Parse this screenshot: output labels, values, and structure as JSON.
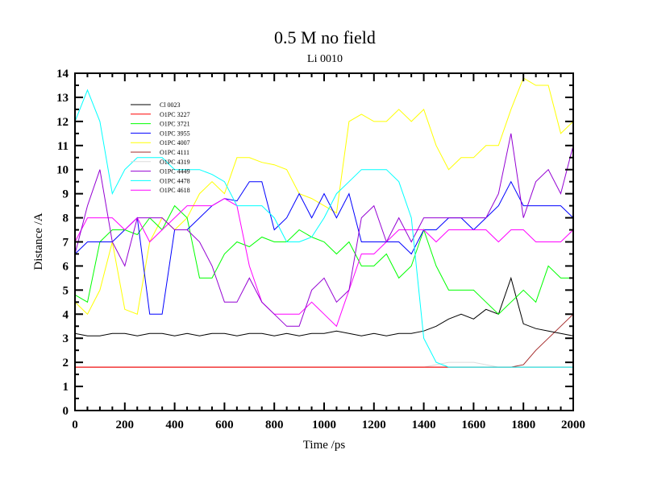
{
  "chart_data": {
    "type": "line",
    "title": "0.5 M no field",
    "subtitle": "Li 0010",
    "xlabel": "Time /ps",
    "ylabel": "Distance /A",
    "xlim": [
      0,
      2000
    ],
    "ylim": [
      0,
      14
    ],
    "xticks": [
      0,
      200,
      400,
      600,
      800,
      1000,
      1200,
      1400,
      1600,
      1800,
      2000
    ],
    "yticks": [
      0,
      1,
      2,
      3,
      4,
      5,
      6,
      7,
      8,
      9,
      10,
      11,
      12,
      13,
      14
    ],
    "grid": false,
    "legend_position": "top-left",
    "x": [
      0,
      50,
      100,
      150,
      200,
      250,
      300,
      350,
      400,
      450,
      500,
      550,
      600,
      650,
      700,
      750,
      800,
      850,
      900,
      950,
      1000,
      1050,
      1100,
      1150,
      1200,
      1250,
      1300,
      1350,
      1400,
      1450,
      1500,
      1550,
      1600,
      1650,
      1700,
      1750,
      1800,
      1850,
      1900,
      1950,
      2000
    ],
    "series": [
      {
        "name": "Cl 0023",
        "color": "#000000",
        "values": [
          3.2,
          3.1,
          3.1,
          3.2,
          3.2,
          3.1,
          3.2,
          3.2,
          3.1,
          3.2,
          3.1,
          3.2,
          3.2,
          3.1,
          3.2,
          3.2,
          3.1,
          3.2,
          3.1,
          3.2,
          3.2,
          3.3,
          3.2,
          3.1,
          3.2,
          3.1,
          3.2,
          3.2,
          3.3,
          3.5,
          3.8,
          4.0,
          3.8,
          4.2,
          4.0,
          5.5,
          3.6,
          3.4,
          3.3,
          3.2,
          3.1
        ]
      },
      {
        "name": "O1PC 3227",
        "color": "#ff0000",
        "values": [
          1.8,
          1.8,
          1.8,
          1.8,
          1.8,
          1.8,
          1.8,
          1.8,
          1.8,
          1.8,
          1.8,
          1.8,
          1.8,
          1.8,
          1.8,
          1.8,
          1.8,
          1.8,
          1.8,
          1.8,
          1.8,
          1.8,
          1.8,
          1.8,
          1.8,
          1.8,
          1.8,
          1.8,
          1.8,
          1.8,
          1.8,
          1.8,
          1.8,
          1.8,
          1.8,
          1.8,
          1.8,
          1.8,
          1.8,
          1.8,
          1.8
        ]
      },
      {
        "name": "O1PC 3721",
        "color": "#00ff00",
        "values": [
          4.8,
          4.5,
          7.0,
          7.5,
          7.5,
          7.3,
          8.0,
          7.5,
          8.5,
          8.0,
          5.5,
          5.5,
          6.5,
          7.0,
          6.8,
          7.2,
          7.0,
          7.0,
          7.5,
          7.2,
          7.0,
          6.5,
          7.0,
          6.0,
          6.0,
          6.5,
          5.5,
          6.0,
          7.5,
          6.0,
          5.0,
          5.0,
          5.0,
          4.5,
          4.0,
          4.5,
          5.0,
          4.5,
          6.0,
          5.5,
          5.5
        ]
      },
      {
        "name": "O1PC 3955",
        "color": "#0000ff",
        "values": [
          6.5,
          7.0,
          7.0,
          7.0,
          7.5,
          8.0,
          4.0,
          4.0,
          7.5,
          7.5,
          8.0,
          8.5,
          8.8,
          8.7,
          9.5,
          9.5,
          7.5,
          8.0,
          9.0,
          8.0,
          9.0,
          8.0,
          9.0,
          7.0,
          7.0,
          7.0,
          7.0,
          6.5,
          7.5,
          7.5,
          8.0,
          8.0,
          7.5,
          8.0,
          8.5,
          9.5,
          8.5,
          8.5,
          8.5,
          8.5,
          8.0
        ]
      },
      {
        "name": "O1PC 4007",
        "color": "#ffff00",
        "values": [
          4.5,
          4.0,
          5.0,
          7.0,
          4.2,
          4.0,
          7.0,
          8.0,
          7.5,
          8.0,
          9.0,
          9.5,
          9.0,
          10.5,
          10.5,
          10.3,
          10.2,
          10.0,
          9.0,
          8.8,
          8.5,
          8.2,
          12.0,
          12.3,
          12.0,
          12.0,
          12.5,
          12.0,
          12.5,
          11.0,
          10.0,
          10.5,
          10.5,
          11.0,
          11.0,
          12.5,
          13.8,
          13.5,
          13.5,
          11.5,
          12.0
        ]
      },
      {
        "name": "O1PC 4111",
        "color": "#a52a2a",
        "values": [
          1.8,
          1.8,
          1.8,
          1.8,
          1.8,
          1.8,
          1.8,
          1.8,
          1.8,
          1.8,
          1.8,
          1.8,
          1.8,
          1.8,
          1.8,
          1.8,
          1.8,
          1.8,
          1.8,
          1.8,
          1.8,
          1.8,
          1.8,
          1.8,
          1.8,
          1.8,
          1.8,
          1.8,
          1.8,
          1.8,
          1.8,
          1.8,
          1.8,
          1.8,
          1.8,
          1.8,
          1.9,
          2.5,
          3.0,
          3.5,
          4.0
        ]
      },
      {
        "name": "O1PC 4319",
        "color": "#dcdcdc",
        "values": [
          1.8,
          1.8,
          1.8,
          1.8,
          1.8,
          1.8,
          1.8,
          1.8,
          1.8,
          1.8,
          1.8,
          1.8,
          1.8,
          1.8,
          1.8,
          1.8,
          1.8,
          1.8,
          1.8,
          1.8,
          1.8,
          1.8,
          1.8,
          1.8,
          1.8,
          1.8,
          1.8,
          1.8,
          1.8,
          1.9,
          2.0,
          2.0,
          2.0,
          1.9,
          1.8,
          1.8,
          1.8,
          1.8,
          1.8,
          1.8,
          1.8
        ]
      },
      {
        "name": "O1PC 4449",
        "color": "#9400d3",
        "values": [
          6.5,
          8.5,
          10.0,
          7.0,
          6.0,
          8.0,
          8.0,
          8.0,
          7.5,
          7.5,
          7.0,
          6.0,
          4.5,
          4.5,
          5.5,
          4.5,
          4.0,
          3.5,
          3.5,
          5.0,
          5.5,
          4.5,
          5.0,
          8.0,
          8.5,
          7.0,
          8.0,
          7.0,
          8.0,
          8.0,
          8.0,
          8.0,
          8.0,
          8.0,
          9.0,
          11.5,
          8.0,
          9.5,
          10.0,
          9.0,
          11.0
        ]
      },
      {
        "name": "O1PC 4478",
        "color": "#00ffff",
        "values": [
          12.0,
          13.3,
          12.0,
          9.0,
          10.0,
          10.5,
          10.5,
          10.5,
          10.0,
          10.0,
          10.0,
          9.8,
          9.5,
          8.5,
          8.5,
          8.5,
          8.0,
          7.0,
          7.0,
          7.2,
          8.0,
          9.0,
          9.5,
          10.0,
          10.0,
          10.0,
          9.5,
          8.0,
          3.0,
          2.0,
          1.8,
          1.8,
          1.8,
          1.8,
          1.8,
          1.8,
          1.8,
          1.8,
          1.8,
          1.8,
          1.8
        ]
      },
      {
        "name": "O1PC 4618",
        "color": "#ff00ff",
        "values": [
          7.0,
          8.0,
          8.0,
          8.0,
          7.5,
          8.0,
          7.0,
          7.5,
          8.0,
          8.5,
          8.5,
          8.5,
          8.8,
          8.5,
          6.0,
          4.5,
          4.0,
          4.0,
          4.0,
          4.5,
          4.0,
          3.5,
          5.0,
          6.5,
          6.5,
          7.0,
          7.5,
          7.5,
          7.5,
          7.0,
          7.5,
          7.5,
          7.5,
          7.5,
          7.0,
          7.5,
          7.5,
          7.0,
          7.0,
          7.0,
          7.5
        ]
      }
    ]
  }
}
